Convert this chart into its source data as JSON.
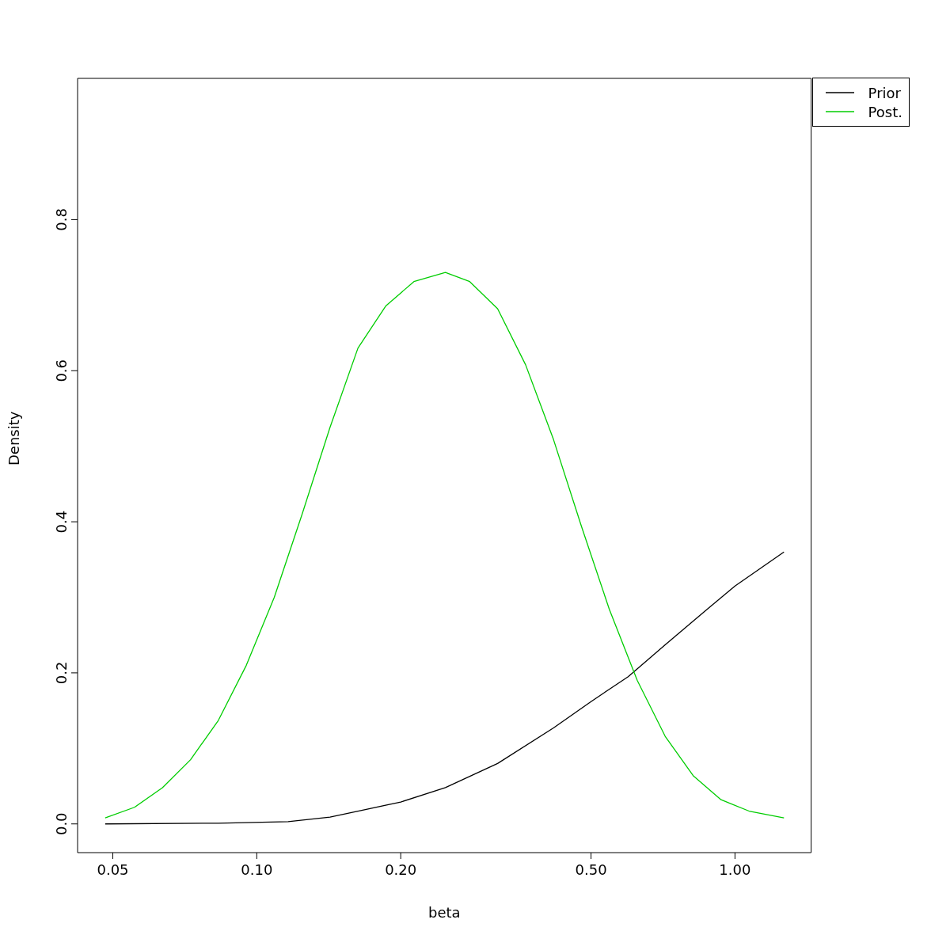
{
  "chart_data": {
    "type": "line",
    "xlabel": "beta",
    "ylabel": "Density",
    "log": "x",
    "xlim": [
      0.0422,
      1.443
    ],
    "xticks": [
      {
        "value": 0.05,
        "label": "0.05"
      },
      {
        "value": 0.1,
        "label": "0.10"
      },
      {
        "value": 0.2,
        "label": "0.20"
      },
      {
        "value": 0.5,
        "label": "0.50"
      },
      {
        "value": 1,
        "label": "1.00"
      }
    ],
    "ylim": [
      -0.038,
      0.987
    ],
    "yticks": [
      {
        "value": 0,
        "label": "0.0"
      },
      {
        "value": 0.2,
        "label": "0.2"
      },
      {
        "value": 0.4,
        "label": "0.4"
      },
      {
        "value": 0.6,
        "label": "0.6"
      },
      {
        "value": 0.8,
        "label": "0.8"
      }
    ],
    "grid": false,
    "legend": "top right",
    "marker": "none",
    "line_style": "solid",
    "series": [
      {
        "name": "Prior",
        "color": "#000000",
        "x": [
          0.0482,
          0.0831,
          0.1163,
          0.1423,
          0.1628,
          0.2,
          0.248,
          0.3189,
          0.4173,
          0.5,
          0.598,
          0.7145,
          0.874,
          1.0,
          1.266
        ],
        "values": [
          0.0,
          0.001,
          0.003,
          0.009,
          0.017,
          0.029,
          0.048,
          0.08,
          0.127,
          0.162,
          0.195,
          0.237,
          0.284,
          0.315,
          0.36
        ]
      },
      {
        "name": "Post.",
        "color": "#00cd00",
        "x": [
          0.0482,
          0.0555,
          0.0635,
          0.0727,
          0.0831,
          0.0951,
          0.1088,
          0.1244,
          0.1423,
          0.1628,
          0.1863,
          0.2131,
          0.248,
          0.2788,
          0.3189,
          0.3648,
          0.4173,
          0.4774,
          0.5461,
          0.6247,
          0.7145,
          0.8174,
          0.935,
          1.07,
          1.266
        ],
        "values": [
          0.008,
          0.022,
          0.048,
          0.085,
          0.137,
          0.21,
          0.3,
          0.41,
          0.525,
          0.63,
          0.686,
          0.718,
          0.73,
          0.718,
          0.682,
          0.608,
          0.509,
          0.394,
          0.284,
          0.19,
          0.116,
          0.064,
          0.032,
          0.017,
          0.008
        ]
      }
    ]
  }
}
